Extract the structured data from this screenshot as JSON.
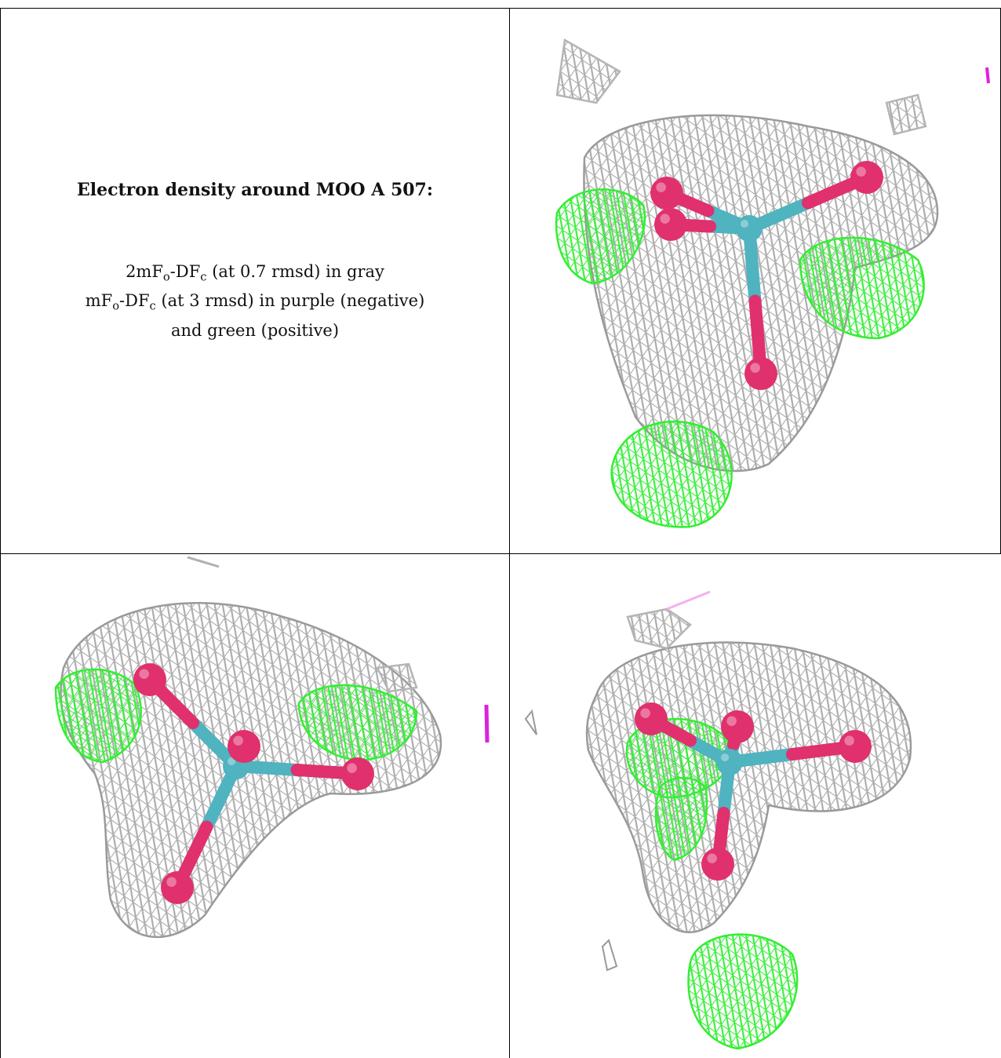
{
  "caption": {
    "title": "Electron density around MOO A 507:",
    "line1": {
      "pre": "2mF",
      "sub1": "o",
      "mid": "-DF",
      "sub2": "c",
      "post": " (at 0.7 rmsd) in gray"
    },
    "line2": {
      "pre": "mF",
      "sub1": "o",
      "mid": "-DF",
      "sub2": "c",
      "post": " (at 3 rmsd) in purple (negative)"
    },
    "line3": "and green (positive)"
  },
  "colors": {
    "mesh_2fofc": "#a8a8a8",
    "mesh_positive": "#33ee33",
    "mesh_negative": "#dd22dd",
    "oxygen_atom": "#e0306e",
    "molybdenum_atom": "#4fb3c0"
  }
}
